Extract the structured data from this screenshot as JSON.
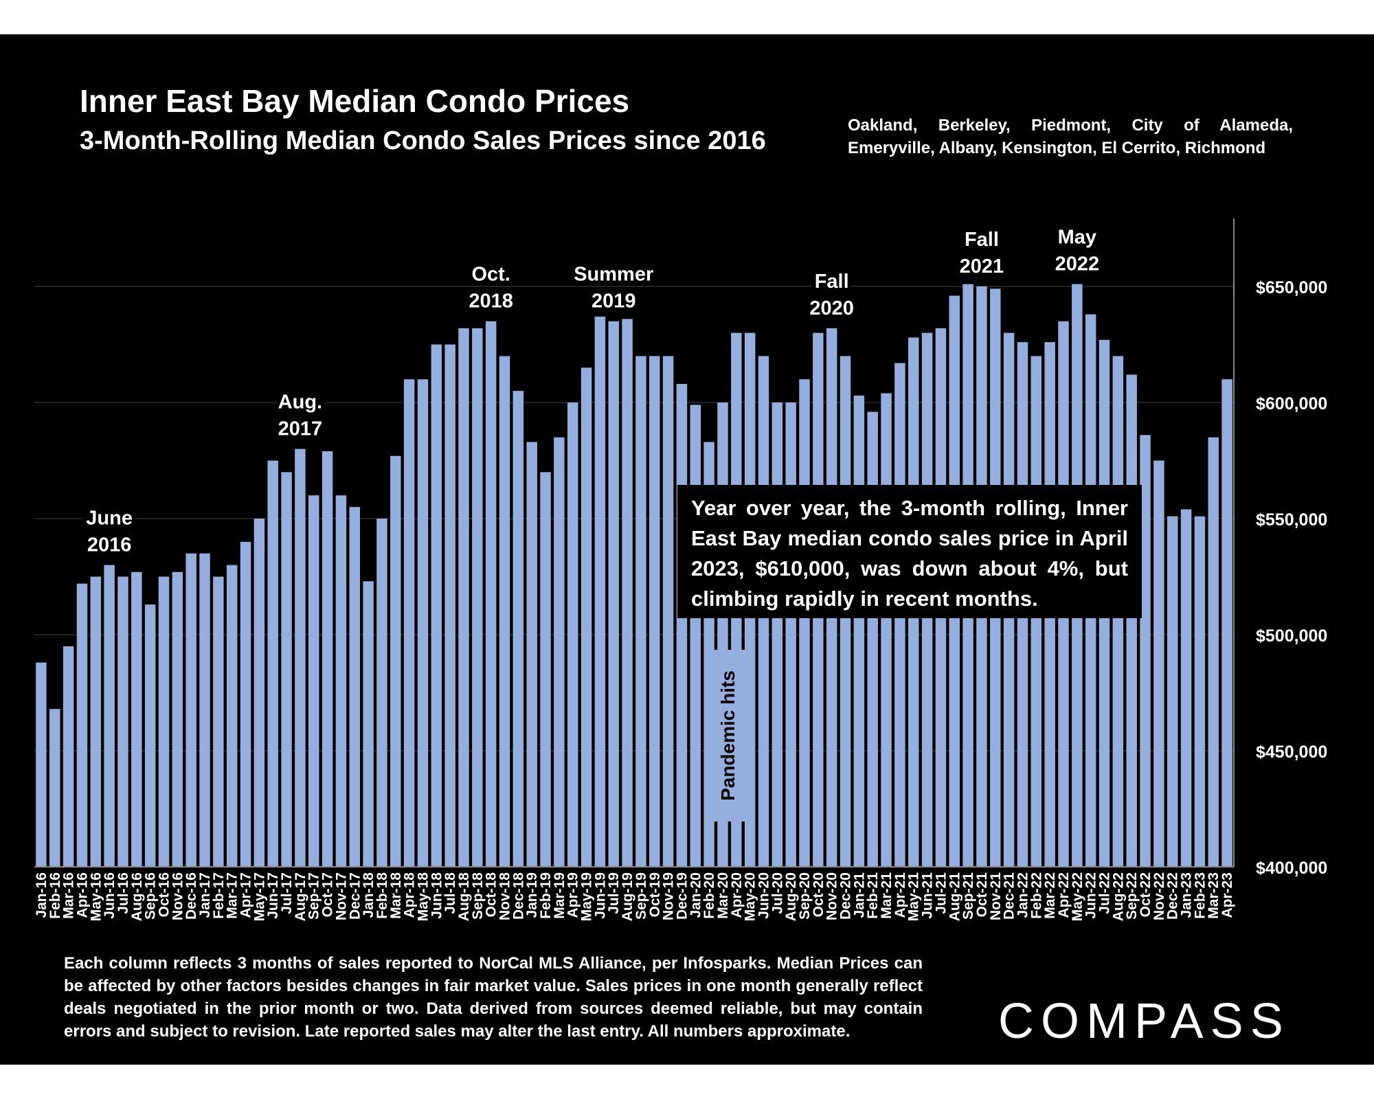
{
  "title": "Inner East Bay Median Condo Prices",
  "subtitle": "3-Month-Rolling Median Condo Sales Prices since 2016",
  "areas_note": "Oakland, Berkeley, Piedmont, City of Alameda, Emeryville, Albany, Kensington, El Cerrito, Richmond",
  "callout_text": "Year over year, the 3-month rolling, Inner East Bay median condo sales price in April 2023, $610,000, was down about 4%, but climbing rapidly in recent months.",
  "pandemic_label": "Pandemic hits",
  "footnote": "Each column reflects 3 months of sales reported to NorCal MLS Alliance, per Infosparks. Median Prices can be affected by other factors besides changes in fair market value. Sales prices in one month generally reflect deals negotiated in the prior month or two. Data derived from sources deemed reliable, but may contain errors and subject to revision. Late reported sales may alter the last entry. All numbers approximate.",
  "logo": "COMPASS",
  "colors": {
    "bar": "#94aede",
    "background": "#000000",
    "text": "#ffffff"
  },
  "chart_data": {
    "type": "bar",
    "categories": [
      "Jan-16",
      "Feb-16",
      "Mar-16",
      "Apr-16",
      "May-16",
      "Jun-16",
      "Jul-16",
      "Aug-16",
      "Sep-16",
      "Oct-16",
      "Nov-16",
      "Dec-16",
      "Jan-17",
      "Feb-17",
      "Mar-17",
      "Apr-17",
      "May-17",
      "Jun-17",
      "Jul-17",
      "Aug-17",
      "Sep-17",
      "Oct-17",
      "Nov-17",
      "Dec-17",
      "Jan-18",
      "Feb-18",
      "Mar-18",
      "Apr-18",
      "May-18",
      "Jun-18",
      "Jul-18",
      "Aug-18",
      "Sep-18",
      "Oct-18",
      "Nov-18",
      "Dec-18",
      "Jan-19",
      "Feb-19",
      "Mar-19",
      "Apr-19",
      "May-19",
      "Jun-19",
      "Jul-19",
      "Aug-19",
      "Sep-19",
      "Oct-19",
      "Nov-19",
      "Dec-19",
      "Jan-20",
      "Feb-20",
      "Mar-20",
      "Apr-20",
      "May-20",
      "Jun-20",
      "Jul-20",
      "Aug-20",
      "Sep-20",
      "Oct-20",
      "Nov-20",
      "Dec-20",
      "Jan-21",
      "Feb-21",
      "Mar-21",
      "Apr-21",
      "May-21",
      "Jun-21",
      "Jul-21",
      "Aug-21",
      "Sep-21",
      "Oct-21",
      "Nov-21",
      "Dec-21",
      "Jan-22",
      "Feb-22",
      "Mar-22",
      "Apr-22",
      "May-22",
      "Jun-22",
      "Jul-22",
      "Aug-22",
      "Sep-22",
      "Oct-22",
      "Nov-22",
      "Dec-22",
      "Jan-23",
      "Feb-23",
      "Mar-23",
      "Apr-23"
    ],
    "values": [
      488000,
      468000,
      495000,
      522000,
      525000,
      530000,
      525000,
      527000,
      513000,
      525000,
      527000,
      535000,
      535000,
      525000,
      530000,
      540000,
      550000,
      575000,
      570000,
      580000,
      560000,
      579000,
      560000,
      555000,
      523000,
      550000,
      577000,
      610000,
      610000,
      625000,
      625000,
      632000,
      632000,
      635000,
      620000,
      605000,
      583000,
      570000,
      585000,
      600000,
      615000,
      637000,
      635000,
      636000,
      620000,
      620000,
      620000,
      608000,
      599000,
      583000,
      600000,
      630000,
      630000,
      620000,
      600000,
      600000,
      610000,
      630000,
      632000,
      620000,
      603000,
      596000,
      604000,
      617000,
      628000,
      630000,
      632000,
      646000,
      651000,
      650000,
      649000,
      630000,
      626000,
      620000,
      626000,
      635000,
      651000,
      638000,
      627000,
      620000,
      612000,
      586000,
      575000,
      551000,
      554000,
      551000,
      585000,
      610000
    ],
    "title": "Inner East Bay Median Condo Prices",
    "subtitle": "3-Month-Rolling Median Condo Sales Prices since 2016",
    "xlabel": "",
    "ylabel": "",
    "ylim": [
      400000,
      680000
    ],
    "yticks": [
      400000,
      450000,
      500000,
      550000,
      600000,
      650000
    ],
    "ytick_labels": [
      "$400,000",
      "$450,000",
      "$500,000",
      "$550,000",
      "$600,000",
      "$650,000"
    ],
    "y_axis_side": "right",
    "grid": true,
    "annotations": [
      {
        "label": [
          "June",
          "2016"
        ],
        "index": 5
      },
      {
        "label": [
          "Aug.",
          "2017"
        ],
        "index": 19
      },
      {
        "label": [
          "Oct.",
          "2018"
        ],
        "index": 33
      },
      {
        "label": [
          "Summer",
          "2019"
        ],
        "index": 42
      },
      {
        "label": [
          "Fall",
          "2020"
        ],
        "index": 58
      },
      {
        "label": [
          "Fall",
          "2021"
        ],
        "index": 69
      },
      {
        "label": [
          "May",
          "2022"
        ],
        "index": 76
      }
    ]
  }
}
